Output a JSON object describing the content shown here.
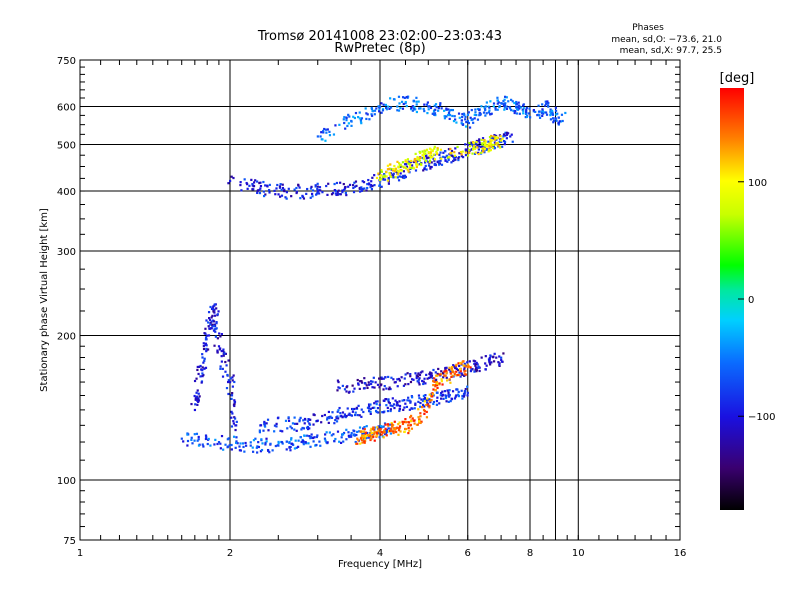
{
  "chart_data": {
    "type": "scatter",
    "title": "Tromsø 20141008 23:02:00–23:03:43",
    "subtitle": "RwPretec (8p)",
    "xlabel": "Frequency [MHz]",
    "ylabel": "Stationary phase Virtual Height [km]",
    "x_scale": "log",
    "y_scale": "log",
    "xlim": [
      1,
      16
    ],
    "ylim": [
      75,
      750
    ],
    "x_ticks": [
      1,
      2,
      4,
      6,
      8,
      10,
      16
    ],
    "x_tick_labels": [
      "1",
      "2",
      "4",
      "6",
      "8",
      "10",
      "16"
    ],
    "y_ticks": [
      75,
      100,
      200,
      300,
      400,
      500,
      600,
      750
    ],
    "y_tick_labels": [
      "75",
      "100",
      "200",
      "300",
      "400",
      "500",
      "600",
      "750"
    ],
    "grid": true,
    "legend": {
      "title": "Phases",
      "line1": "mean, sd,O: −73.6, 21.0",
      "line2": "mean, sd,X:  97.7, 25.5",
      "placement": "top-right"
    },
    "colorbar": {
      "label": "[deg]",
      "range": [
        -180,
        180
      ],
      "ticks": [
        100,
        0,
        -100
      ],
      "tick_labels": [
        "100",
        "0",
        "−100"
      ],
      "colormap": "rainbow"
    },
    "series": [
      {
        "trace": "F-layer trace (O-mode)",
        "x": [
          2.0,
          2.3,
          2.6,
          3.0,
          3.4,
          3.8,
          4.2,
          4.6,
          5.0,
          5.4,
          5.8,
          6.3,
          6.8,
          7.3
        ],
        "y": [
          420,
          405,
          398,
          400,
          405,
          415,
          430,
          445,
          460,
          470,
          480,
          495,
          505,
          520
        ],
        "phase_deg": -95
      },
      {
        "trace": "F-layer upper scatter",
        "x": [
          3.0,
          3.5,
          4.0,
          4.5,
          5.0,
          5.5,
          6.0,
          6.5,
          7.0,
          7.5,
          8.0,
          8.7,
          9.3
        ],
        "y": [
          520,
          560,
          600,
          610,
          600,
          580,
          560,
          590,
          610,
          600,
          570,
          600,
          560
        ],
        "phase_deg": -60
      },
      {
        "trace": "F-layer X-mode",
        "x": [
          4.0,
          4.3,
          4.6,
          4.9,
          5.2,
          6.2,
          6.6,
          7.0
        ],
        "y": [
          430,
          445,
          455,
          470,
          480,
          490,
          500,
          510
        ],
        "phase_deg": 95
      },
      {
        "trace": "E-layer lower",
        "x": [
          1.6,
          1.9,
          2.2,
          2.5,
          2.8,
          3.1,
          3.5,
          3.9,
          4.2
        ],
        "y": [
          122,
          120,
          118,
          118,
          120,
          122,
          124,
          126,
          128
        ],
        "phase_deg": -70
      },
      {
        "trace": "E-layer mid",
        "x": [
          2.3,
          2.7,
          3.0,
          3.4,
          3.8,
          4.2,
          4.6,
          5.0,
          5.5,
          6.0
        ],
        "y": [
          130,
          131,
          133,
          137,
          141,
          143,
          145,
          147,
          150,
          152
        ],
        "phase_deg": -85
      },
      {
        "trace": "E-layer upper",
        "x": [
          3.3,
          3.8,
          4.3,
          4.8,
          5.3,
          5.9,
          6.5,
          7.0
        ],
        "y": [
          156,
          158,
          160,
          163,
          166,
          170,
          175,
          178
        ],
        "phase_deg": -105
      },
      {
        "trace": "Es vertical column",
        "x": [
          1.7,
          1.75,
          1.8,
          1.85,
          1.9,
          2.0,
          2.05
        ],
        "y": [
          140,
          170,
          200,
          230,
          190,
          160,
          130
        ],
        "phase_deg": -100
      },
      {
        "trace": "E X-mode",
        "x": [
          3.6,
          3.8,
          4.0,
          4.3,
          4.6,
          4.9,
          5.2,
          5.6,
          6.0
        ],
        "y": [
          122,
          124,
          126,
          128,
          130,
          140,
          160,
          168,
          172
        ],
        "phase_deg": 140
      }
    ]
  }
}
